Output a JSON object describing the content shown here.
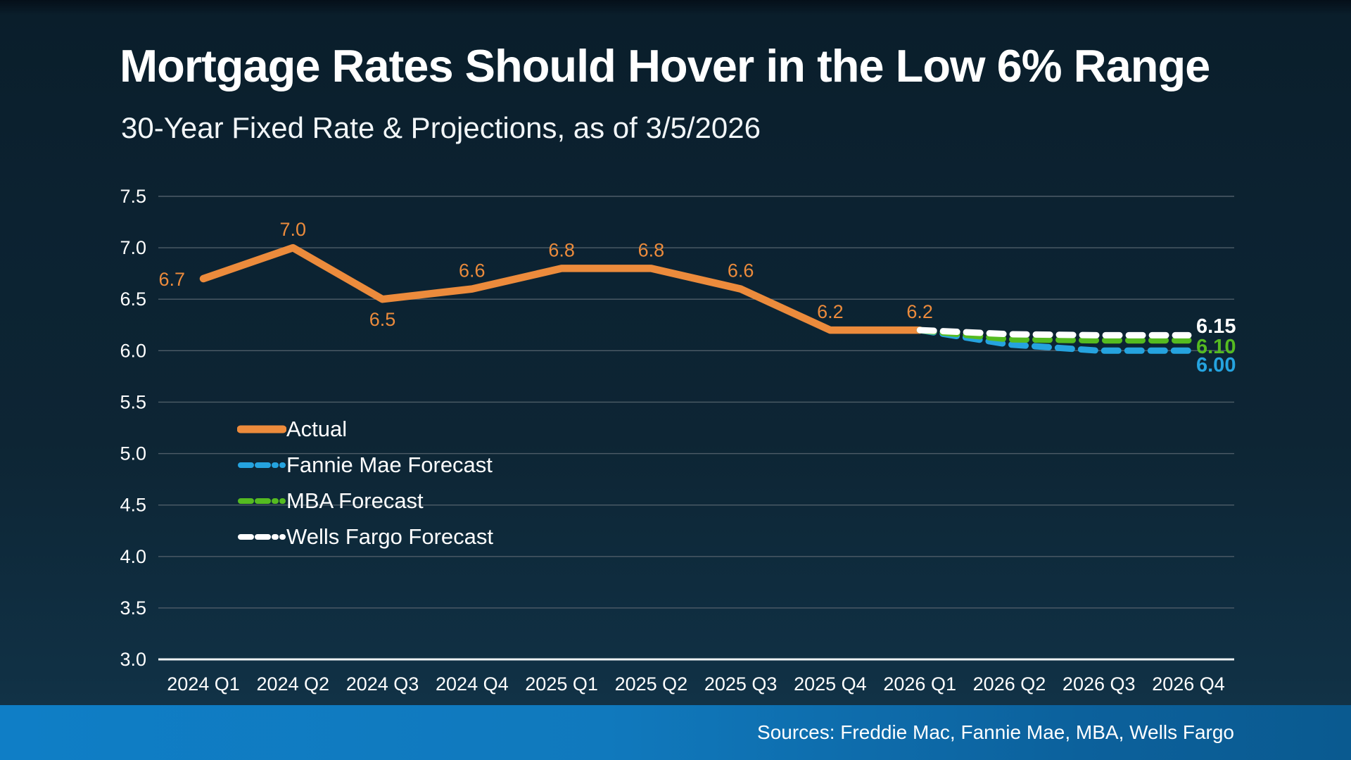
{
  "page": {
    "title": "Mortgage Rates Should Hover in the Low 6% Range",
    "subtitle": "30-Year Fixed Rate & Projections, as of 3/5/2026",
    "footer": "Sources: Freddie Mac, Fannie Mae, MBA, Wells Fargo"
  },
  "colors": {
    "background": "#0d2433",
    "footer_bar_left": "#0f7ec6",
    "footer_bar_right": "#0a5a90",
    "gridline": "#4e5d68",
    "axis_line": "#eef2f4",
    "tick_text": "#ffffff",
    "actual": "#ec8b3c",
    "fannie_mae": "#25a3df",
    "mba": "#55bb21",
    "wells_fargo": "#ffffff"
  },
  "chart_data": {
    "type": "line",
    "title": "Mortgage Rates Should Hover in the Low 6% Range",
    "subtitle": "30-Year Fixed Rate & Projections, as of 3/5/2026",
    "categories": [
      "2024 Q1",
      "2024 Q2",
      "2024 Q3",
      "2024 Q4",
      "2025 Q1",
      "2025 Q2",
      "2025 Q3",
      "2025 Q4",
      "2026 Q1",
      "2026 Q2",
      "2026 Q3",
      "2026 Q4"
    ],
    "ylim": [
      3.0,
      7.5
    ],
    "ytick_step": 0.5,
    "ytick_labels": [
      "3.0",
      "3.5",
      "4.0",
      "4.5",
      "5.0",
      "5.5",
      "6.0",
      "6.5",
      "7.0",
      "7.5"
    ],
    "grid": true,
    "legend_position": "inside-left",
    "series": [
      {
        "name": "Actual",
        "color": "#ec8b3c",
        "dash": false,
        "values": [
          6.7,
          7.0,
          6.5,
          6.6,
          6.8,
          6.8,
          6.6,
          6.2,
          6.2,
          null,
          null,
          null
        ],
        "labels": [
          "6.7",
          "7.0",
          "6.5",
          "6.6",
          "6.8",
          "6.8",
          "6.6",
          "6.2",
          "6.2"
        ],
        "label_positions": [
          "left",
          "above",
          "below",
          "above",
          "above",
          "above",
          "above",
          "above",
          "above"
        ]
      },
      {
        "name": "Fannie Mae Forecast",
        "color": "#25a3df",
        "dash": true,
        "values": [
          null,
          null,
          null,
          null,
          null,
          null,
          null,
          null,
          6.2,
          6.06,
          6.0,
          6.0
        ],
        "end_label": "6.00"
      },
      {
        "name": "MBA Forecast",
        "color": "#55bb21",
        "dash": true,
        "values": [
          null,
          null,
          null,
          null,
          null,
          null,
          null,
          null,
          6.2,
          6.11,
          6.1,
          6.1
        ],
        "end_label": "6.10"
      },
      {
        "name": "Wells Fargo Forecast",
        "color": "#ffffff",
        "dash": true,
        "values": [
          null,
          null,
          null,
          null,
          null,
          null,
          null,
          null,
          6.2,
          6.16,
          6.15,
          6.15
        ],
        "end_label": "6.15"
      }
    ],
    "end_labels": [
      {
        "text": "6.15",
        "color": "#ffffff"
      },
      {
        "text": "6.10",
        "color": "#55bb21"
      },
      {
        "text": "6.00",
        "color": "#25a3df"
      }
    ]
  }
}
